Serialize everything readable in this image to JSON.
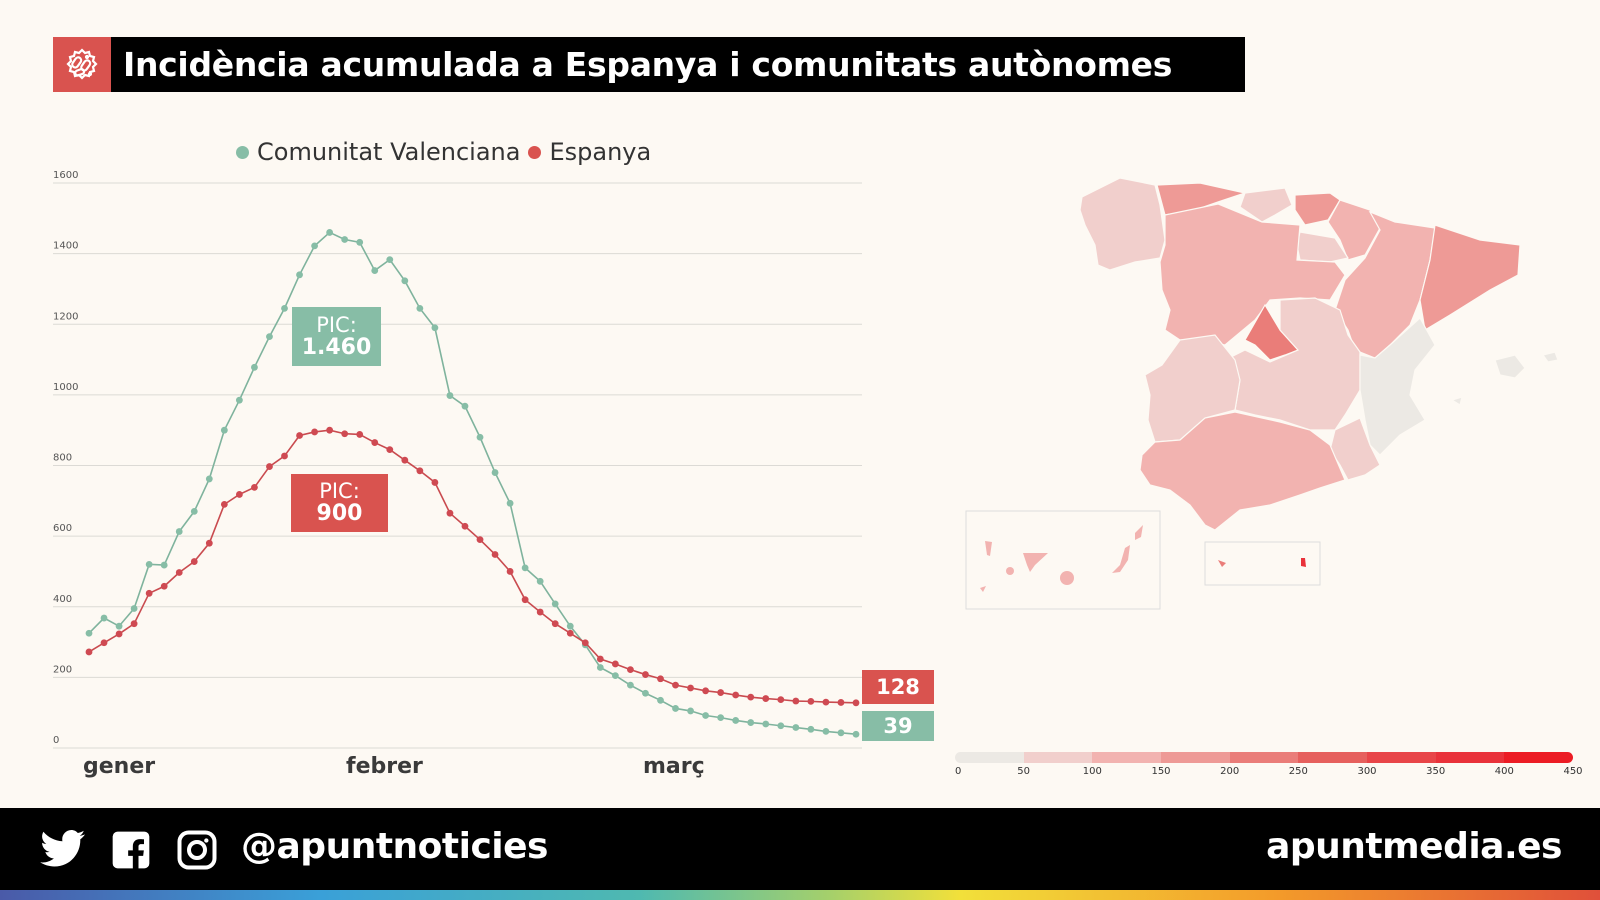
{
  "header": {
    "title": "Incidència acumulada a Espanya i comunitats autònomes",
    "icon": "virus-icon",
    "accent_color": "#d9534f"
  },
  "legend": {
    "items": [
      {
        "label": "Comunitat Valenciana",
        "color": "#87bda6"
      },
      {
        "label": "Espanya",
        "color": "#d9534f"
      }
    ]
  },
  "annotations": {
    "pic_cv": {
      "label": "PIC:",
      "value": "1.460"
    },
    "pic_es": {
      "label": "PIC:",
      "value": "900"
    },
    "end_es": "128",
    "end_cv": "39"
  },
  "months": [
    "gener",
    "febrer",
    "març"
  ],
  "chart_data": [
    {
      "type": "line",
      "title": "Incidència acumulada a Espanya i comunitats autònomes",
      "xlabel": "",
      "ylabel": "",
      "ylim": [
        0,
        1600
      ],
      "yticks": [
        0,
        200,
        400,
        600,
        800,
        1000,
        1200,
        1400,
        1600
      ],
      "x_tick_labels": [
        "gener",
        "febrer",
        "març"
      ],
      "grid": true,
      "legend_position": "top",
      "series": [
        {
          "name": "Comunitat Valenciana",
          "color": "#87bda6",
          "values": [
            325,
            368,
            345,
            395,
            520,
            518,
            613,
            670,
            762,
            900,
            985,
            1078,
            1165,
            1245,
            1340,
            1422,
            1460,
            1440,
            1432,
            1352,
            1383,
            1323,
            1245,
            1190,
            998,
            968,
            880,
            780,
            693,
            510,
            472,
            408,
            345,
            292,
            228,
            205,
            178,
            155,
            135,
            112,
            105,
            92,
            86,
            78,
            72,
            68,
            63,
            58,
            53,
            47,
            43,
            39
          ]
        },
        {
          "name": "Espanya",
          "color": "#d9534f",
          "values": [
            272,
            298,
            323,
            352,
            438,
            458,
            497,
            528,
            580,
            690,
            718,
            738,
            797,
            827,
            885,
            895,
            900,
            890,
            888,
            865,
            845,
            815,
            785,
            752,
            665,
            628,
            590,
            548,
            500,
            420,
            385,
            352,
            325,
            298,
            252,
            238,
            222,
            208,
            196,
            178,
            170,
            162,
            157,
            150,
            144,
            140,
            137,
            133,
            132,
            130,
            129,
            128
          ]
        }
      ],
      "annotations": [
        {
          "text": "PIC: 1.460",
          "series": "Comunitat Valenciana"
        },
        {
          "text": "PIC: 900",
          "series": "Espanya"
        },
        {
          "text": "128",
          "series": "Espanya",
          "position": "end"
        },
        {
          "text": "39",
          "series": "Comunitat Valenciana",
          "position": "end"
        }
      ]
    },
    {
      "type": "heatmap",
      "title": "Mapa d'incidència per comunitat autònoma",
      "color_scale": {
        "ticks": [
          0,
          50,
          100,
          150,
          200,
          250,
          300,
          350,
          400,
          450
        ],
        "colors": [
          "#ece9e4",
          "#f1cfcc",
          "#f2b3b0",
          "#ee9a96",
          "#ea7d79",
          "#e6605d",
          "#e84548",
          "#e9323a",
          "#ec1c24"
        ]
      },
      "regions_approx_colors": {
        "Galicia": "#f1cfcc",
        "Asturias": "#ee9a96",
        "Cantabria": "#f1cfcc",
        "País Basc": "#ee9a96",
        "Navarra": "#f2b3b0",
        "La Rioja": "#f1cfcc",
        "Aragó": "#f2b3b0",
        "Catalunya": "#ee9a96",
        "Castella i Lleó": "#f2b3b0",
        "Madrid": "#ea7d79",
        "Castella-la Manxa": "#f1cfcc",
        "Extremadura": "#f1cfcc",
        "Comunitat Valenciana": "#ece9e4",
        "Múrcia": "#f1cfcc",
        "Andalusia": "#f2b3b0",
        "Illes Balears": "#ece9e4",
        "Canàries": "#f2b3b0",
        "Ceuta": "#ea7d79",
        "Melilla": "#e9323a"
      }
    }
  ],
  "scale": {
    "labels": [
      "0",
      "50",
      "100",
      "150",
      "200",
      "250",
      "300",
      "350",
      "400",
      "450"
    ],
    "colors": [
      "#ece9e4",
      "#f1cfcc",
      "#f2b3b0",
      "#ee9a96",
      "#ea7d79",
      "#e6605d",
      "#e84548",
      "#e9323a",
      "#ec1c24"
    ]
  },
  "footer": {
    "handle": "@apuntnoticies",
    "site": "apuntmedia.es",
    "social_icons": [
      "twitter-icon",
      "facebook-icon",
      "instagram-icon"
    ]
  }
}
